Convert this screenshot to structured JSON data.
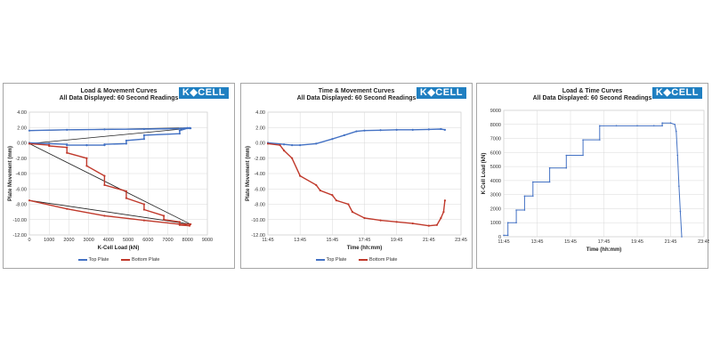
{
  "colors": {
    "top_plate": "#4472c4",
    "bottom_plate": "#c0392b",
    "connector": "#222222",
    "grid": "#d9d9d9"
  },
  "logo_text": "K◆CELL",
  "chart_data": [
    {
      "type": "line",
      "title": "Load & Movement Curves",
      "subtitle": "All Data Displayed:  60 Second Readings",
      "xlabel": "K-Cell Load (kN)",
      "ylabel": "Plate Movement (mm)",
      "xlim": [
        0,
        9000
      ],
      "ylim": [
        -12,
        4
      ],
      "x_ticks": [
        "0",
        "1000",
        "2000",
        "3000",
        "4000",
        "5000",
        "6000",
        "7000",
        "8000",
        "9000"
      ],
      "y_ticks": [
        "4.00",
        "2.00",
        "0.00",
        "-2.00",
        "-4.00",
        "-6.00",
        "-8.00",
        "-10.00",
        "-12.00"
      ],
      "grid": true,
      "legend": "bottom",
      "series": [
        {
          "name": "Top Plate",
          "color": "#4472c4",
          "x": [
            0,
            1900,
            3800,
            5800,
            7600,
            8000,
            8100,
            8150,
            8100,
            8000,
            7600,
            7600,
            5800,
            5800,
            4900,
            4900,
            3800,
            3800,
            2900,
            2900,
            1900,
            1900,
            1000,
            1000,
            0,
            0
          ],
          "y": [
            1.6,
            1.7,
            1.75,
            1.8,
            1.85,
            1.95,
            1.9,
            1.9,
            1.95,
            1.9,
            1.6,
            1.2,
            1.0,
            0.5,
            0.3,
            -0.1,
            -0.2,
            -0.3,
            -0.3,
            -0.3,
            -0.3,
            -0.2,
            -0.1,
            -0.1,
            0.0,
            -0.1
          ]
        },
        {
          "name": "Bottom Plate",
          "color": "#c0392b",
          "x": [
            0,
            1000,
            1000,
            1900,
            1900,
            2900,
            2900,
            3800,
            3800,
            4900,
            4900,
            5800,
            5800,
            6800,
            6800,
            7600,
            7600,
            8100,
            8150,
            7600,
            5800,
            3800,
            1900,
            0
          ],
          "y": [
            -0.1,
            -0.3,
            -0.4,
            -0.6,
            -1.3,
            -2.0,
            -3.0,
            -4.3,
            -5.5,
            -6.3,
            -7.2,
            -8.0,
            -8.7,
            -9.5,
            -10.0,
            -10.3,
            -10.7,
            -10.8,
            -10.6,
            -10.6,
            -10.1,
            -9.5,
            -8.6,
            -7.5
          ]
        }
      ]
    },
    {
      "type": "line",
      "title": "Time & Movement Curves",
      "subtitle": "All Data Displayed:  60 Second Readings",
      "xlabel": "Time (hh:mm)",
      "ylabel": "Plate Movement (mm)",
      "xlim": [
        "11:45",
        "23:45"
      ],
      "ylim": [
        -12,
        4
      ],
      "x_ticks": [
        "11:45",
        "13:45",
        "15:45",
        "17:45",
        "19:45",
        "21:45",
        "23:45"
      ],
      "y_ticks": [
        "4.00",
        "2.00",
        "0.00",
        "-2.00",
        "-4.00",
        "-6.00",
        "-8.00",
        "-10.00",
        "-12.00"
      ],
      "grid": true,
      "legend": "bottom",
      "series": [
        {
          "name": "Top Plate",
          "color": "#4472c4",
          "x": [
            "11:45",
            "12:45",
            "13:15",
            "13:45",
            "14:45",
            "15:45",
            "16:30",
            "17:15",
            "17:45",
            "18:45",
            "19:45",
            "20:45",
            "21:45",
            "22:30",
            "22:45"
          ],
          "y": [
            0.0,
            -0.2,
            -0.3,
            -0.3,
            -0.1,
            0.5,
            1.0,
            1.5,
            1.6,
            1.65,
            1.7,
            1.7,
            1.75,
            1.8,
            1.7
          ]
        },
        {
          "name": "Bottom Plate",
          "color": "#c0392b",
          "x": [
            "11:45",
            "12:30",
            "12:45",
            "13:15",
            "13:45",
            "14:45",
            "15:00",
            "15:45",
            "16:00",
            "16:45",
            "17:00",
            "17:45",
            "18:45",
            "19:45",
            "20:45",
            "21:45",
            "22:15",
            "22:30",
            "22:40",
            "22:45"
          ],
          "y": [
            -0.1,
            -0.3,
            -1.0,
            -2.0,
            -4.3,
            -5.5,
            -6.2,
            -6.8,
            -7.5,
            -8.0,
            -9.0,
            -9.8,
            -10.1,
            -10.3,
            -10.5,
            -10.8,
            -10.7,
            -9.8,
            -9.0,
            -7.5
          ]
        }
      ]
    },
    {
      "type": "line",
      "title": "Load & Time Curves",
      "subtitle": "All Data Displayed:  60 Second Readings",
      "xlabel": "Time (hh:mm)",
      "ylabel": "K-Cell Load (kN)",
      "xlim": [
        "11:45",
        "23:45"
      ],
      "ylim": [
        0,
        9000
      ],
      "x_ticks": [
        "11:45",
        "13:45",
        "15:45",
        "17:45",
        "19:45",
        "21:45",
        "23:45"
      ],
      "y_ticks": [
        "9000",
        "8000",
        "7000",
        "6000",
        "5000",
        "4000",
        "3000",
        "2000",
        "1000",
        "0"
      ],
      "grid": true,
      "legend": "none",
      "series": [
        {
          "name": "",
          "color": "#4472c4",
          "x": [
            "11:45",
            "12:00",
            "12:00",
            "12:30",
            "12:30",
            "13:00",
            "13:00",
            "13:30",
            "13:30",
            "14:30",
            "14:30",
            "15:30",
            "15:30",
            "16:30",
            "16:30",
            "17:30",
            "17:30",
            "18:30",
            "19:45",
            "20:45",
            "21:15",
            "21:15",
            "21:45",
            "22:00",
            "22:05",
            "22:10",
            "22:15",
            "22:20",
            "22:25"
          ],
          "y": [
            100,
            100,
            1000,
            1000,
            1900,
            1900,
            2900,
            2900,
            3900,
            3900,
            4900,
            4900,
            5800,
            5800,
            6900,
            6900,
            7900,
            7900,
            7900,
            7900,
            7900,
            8100,
            8100,
            8000,
            7500,
            5800,
            3600,
            1800,
            0
          ]
        }
      ]
    }
  ]
}
